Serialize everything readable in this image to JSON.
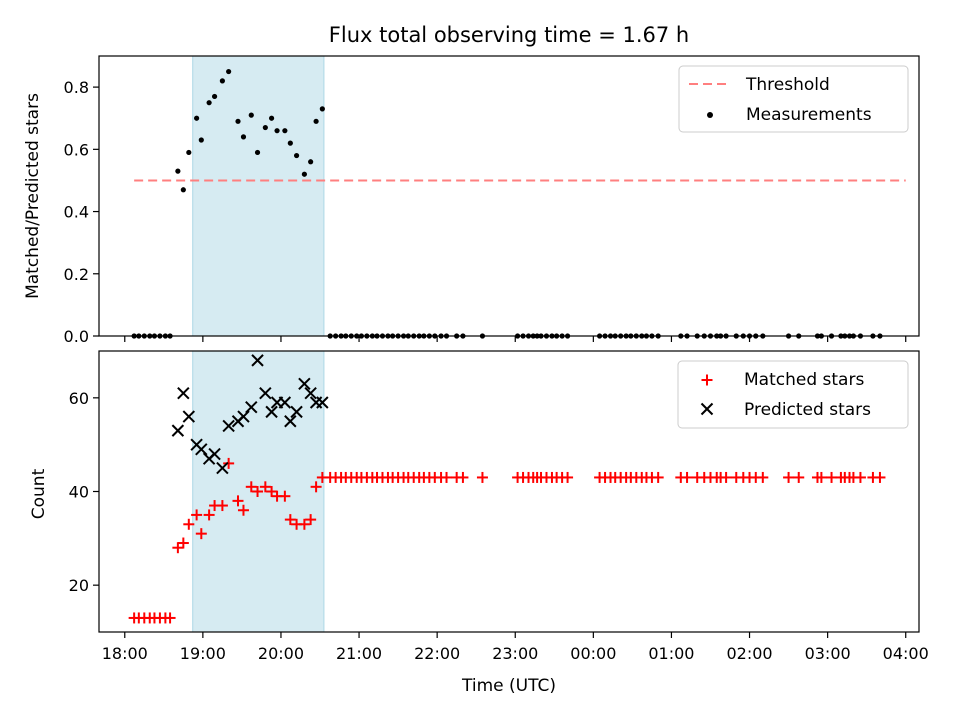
{
  "chart_data": {
    "type": "scatter",
    "title": "Flux total observing time = 1.67 h",
    "xlabel": "Time (UTC)",
    "x_tick_labels": [
      "18:00",
      "19:00",
      "20:00",
      "21:00",
      "22:00",
      "23:00",
      "00:00",
      "01:00",
      "02:00",
      "03:00",
      "04:00"
    ],
    "xlim_hours": [
      17.67,
      28.17
    ],
    "shaded_interval_hours": [
      18.87,
      20.55
    ],
    "shade_color": "#add8e6",
    "panels": [
      {
        "ylabel": "Matched/Predicted stars",
        "ylim": [
          0,
          0.9
        ],
        "yticks": [
          0.0,
          0.2,
          0.4,
          0.6,
          0.8
        ],
        "y_tick_labels": [
          "0.0",
          "0.2",
          "0.4",
          "0.6",
          "0.8"
        ],
        "legend_position": "top-right",
        "legend": [
          {
            "name": "Threshold",
            "style": "dashed-line",
            "color": "#ff7f7f"
          },
          {
            "name": "Measurements",
            "style": "dot",
            "color": "#000000"
          }
        ],
        "threshold": {
          "value": 0.5,
          "x_range": [
            18.12,
            28.0
          ],
          "color": "#ff7f7f"
        },
        "measurements": {
          "color": "#000000",
          "points": [
            [
              18.12,
              0
            ],
            [
              18.18,
              0
            ],
            [
              18.25,
              0
            ],
            [
              18.32,
              0
            ],
            [
              18.38,
              0
            ],
            [
              18.45,
              0
            ],
            [
              18.52,
              0
            ],
            [
              18.58,
              0
            ],
            [
              18.68,
              0.53
            ],
            [
              18.75,
              0.47
            ],
            [
              18.82,
              0.59
            ],
            [
              18.92,
              0.7
            ],
            [
              18.98,
              0.63
            ],
            [
              19.08,
              0.75
            ],
            [
              19.15,
              0.77
            ],
            [
              19.25,
              0.82
            ],
            [
              19.33,
              0.85
            ],
            [
              19.45,
              0.69
            ],
            [
              19.52,
              0.64
            ],
            [
              19.62,
              0.71
            ],
            [
              19.7,
              0.59
            ],
            [
              19.8,
              0.67
            ],
            [
              19.88,
              0.7
            ],
            [
              19.95,
              0.66
            ],
            [
              20.05,
              0.66
            ],
            [
              20.12,
              0.62
            ],
            [
              20.2,
              0.58
            ],
            [
              20.3,
              0.52
            ],
            [
              20.38,
              0.56
            ],
            [
              20.45,
              0.69
            ],
            [
              20.53,
              0.73
            ],
            [
              20.63,
              0
            ],
            [
              20.7,
              0
            ],
            [
              20.77,
              0
            ],
            [
              20.83,
              0
            ],
            [
              20.9,
              0
            ],
            [
              20.97,
              0
            ],
            [
              21.03,
              0
            ],
            [
              21.1,
              0
            ],
            [
              21.17,
              0
            ],
            [
              21.23,
              0
            ],
            [
              21.3,
              0
            ],
            [
              21.37,
              0
            ],
            [
              21.43,
              0
            ],
            [
              21.5,
              0
            ],
            [
              21.57,
              0
            ],
            [
              21.63,
              0
            ],
            [
              21.7,
              0
            ],
            [
              21.77,
              0
            ],
            [
              21.83,
              0
            ],
            [
              21.9,
              0
            ],
            [
              21.97,
              0
            ],
            [
              22.05,
              0
            ],
            [
              22.12,
              0
            ],
            [
              22.25,
              0
            ],
            [
              22.33,
              0
            ],
            [
              22.58,
              0
            ],
            [
              23.03,
              0
            ],
            [
              23.1,
              0
            ],
            [
              23.17,
              0
            ],
            [
              23.23,
              0
            ],
            [
              23.28,
              0
            ],
            [
              23.33,
              0
            ],
            [
              23.4,
              0
            ],
            [
              23.47,
              0
            ],
            [
              23.53,
              0
            ],
            [
              23.6,
              0
            ],
            [
              23.67,
              0
            ],
            [
              24.08,
              0
            ],
            [
              24.15,
              0
            ],
            [
              24.22,
              0
            ],
            [
              24.28,
              0
            ],
            [
              24.35,
              0
            ],
            [
              24.42,
              0
            ],
            [
              24.48,
              0
            ],
            [
              24.55,
              0
            ],
            [
              24.62,
              0
            ],
            [
              24.68,
              0
            ],
            [
              24.75,
              0
            ],
            [
              24.83,
              0
            ],
            [
              25.12,
              0
            ],
            [
              25.2,
              0
            ],
            [
              25.33,
              0
            ],
            [
              25.42,
              0
            ],
            [
              25.5,
              0
            ],
            [
              25.58,
              0
            ],
            [
              25.63,
              0
            ],
            [
              25.7,
              0
            ],
            [
              25.83,
              0
            ],
            [
              25.92,
              0
            ],
            [
              26.0,
              0
            ],
            [
              26.08,
              0
            ],
            [
              26.17,
              0
            ],
            [
              26.5,
              0
            ],
            [
              26.63,
              0
            ],
            [
              26.87,
              0
            ],
            [
              26.92,
              0
            ],
            [
              27.05,
              0
            ],
            [
              27.17,
              0
            ],
            [
              27.22,
              0
            ],
            [
              27.28,
              0
            ],
            [
              27.33,
              0
            ],
            [
              27.42,
              0
            ],
            [
              27.58,
              0
            ],
            [
              27.67,
              0
            ]
          ]
        }
      },
      {
        "ylabel": "Count",
        "ylim": [
          10,
          70
        ],
        "yticks": [
          20,
          40,
          60
        ],
        "y_tick_labels": [
          "20",
          "40",
          "60"
        ],
        "legend_position": "top-right",
        "legend": [
          {
            "name": "Matched stars",
            "style": "plus",
            "color": "#ff0000"
          },
          {
            "name": "Predicted stars",
            "style": "x",
            "color": "#000000"
          }
        ],
        "matched": {
          "color": "#ff0000",
          "points": [
            [
              18.12,
              13
            ],
            [
              18.18,
              13
            ],
            [
              18.25,
              13
            ],
            [
              18.32,
              13
            ],
            [
              18.38,
              13
            ],
            [
              18.45,
              13
            ],
            [
              18.52,
              13
            ],
            [
              18.58,
              13
            ],
            [
              18.68,
              28
            ],
            [
              18.75,
              29
            ],
            [
              18.82,
              33
            ],
            [
              18.92,
              35
            ],
            [
              18.98,
              31
            ],
            [
              19.08,
              35
            ],
            [
              19.15,
              37
            ],
            [
              19.25,
              37
            ],
            [
              19.33,
              46
            ],
            [
              19.45,
              38
            ],
            [
              19.52,
              36
            ],
            [
              19.62,
              41
            ],
            [
              19.7,
              40
            ],
            [
              19.8,
              41
            ],
            [
              19.88,
              40
            ],
            [
              19.95,
              39
            ],
            [
              20.05,
              39
            ],
            [
              20.12,
              34
            ],
            [
              20.2,
              33
            ],
            [
              20.3,
              33
            ],
            [
              20.38,
              34
            ],
            [
              20.45,
              41
            ],
            [
              20.53,
              43
            ],
            [
              20.63,
              43
            ],
            [
              20.7,
              43
            ],
            [
              20.77,
              43
            ],
            [
              20.83,
              43
            ],
            [
              20.9,
              43
            ],
            [
              20.97,
              43
            ],
            [
              21.03,
              43
            ],
            [
              21.1,
              43
            ],
            [
              21.17,
              43
            ],
            [
              21.23,
              43
            ],
            [
              21.3,
              43
            ],
            [
              21.37,
              43
            ],
            [
              21.43,
              43
            ],
            [
              21.5,
              43
            ],
            [
              21.57,
              43
            ],
            [
              21.63,
              43
            ],
            [
              21.7,
              43
            ],
            [
              21.77,
              43
            ],
            [
              21.83,
              43
            ],
            [
              21.9,
              43
            ],
            [
              21.97,
              43
            ],
            [
              22.05,
              43
            ],
            [
              22.12,
              43
            ],
            [
              22.25,
              43
            ],
            [
              22.33,
              43
            ],
            [
              22.58,
              43
            ],
            [
              23.03,
              43
            ],
            [
              23.1,
              43
            ],
            [
              23.17,
              43
            ],
            [
              23.23,
              43
            ],
            [
              23.28,
              43
            ],
            [
              23.33,
              43
            ],
            [
              23.4,
              43
            ],
            [
              23.47,
              43
            ],
            [
              23.53,
              43
            ],
            [
              23.6,
              43
            ],
            [
              23.67,
              43
            ],
            [
              24.08,
              43
            ],
            [
              24.15,
              43
            ],
            [
              24.22,
              43
            ],
            [
              24.28,
              43
            ],
            [
              24.35,
              43
            ],
            [
              24.42,
              43
            ],
            [
              24.48,
              43
            ],
            [
              24.55,
              43
            ],
            [
              24.62,
              43
            ],
            [
              24.68,
              43
            ],
            [
              24.75,
              43
            ],
            [
              24.83,
              43
            ],
            [
              25.12,
              43
            ],
            [
              25.2,
              43
            ],
            [
              25.33,
              43
            ],
            [
              25.42,
              43
            ],
            [
              25.5,
              43
            ],
            [
              25.58,
              43
            ],
            [
              25.63,
              43
            ],
            [
              25.7,
              43
            ],
            [
              25.83,
              43
            ],
            [
              25.92,
              43
            ],
            [
              26.0,
              43
            ],
            [
              26.08,
              43
            ],
            [
              26.17,
              43
            ],
            [
              26.5,
              43
            ],
            [
              26.63,
              43
            ],
            [
              26.87,
              43
            ],
            [
              26.92,
              43
            ],
            [
              27.05,
              43
            ],
            [
              27.17,
              43
            ],
            [
              27.22,
              43
            ],
            [
              27.28,
              43
            ],
            [
              27.33,
              43
            ],
            [
              27.42,
              43
            ],
            [
              27.58,
              43
            ],
            [
              27.67,
              43
            ]
          ]
        },
        "predicted": {
          "color": "#000000",
          "points": [
            [
              18.68,
              53
            ],
            [
              18.75,
              61
            ],
            [
              18.82,
              56
            ],
            [
              18.92,
              50
            ],
            [
              18.98,
              49
            ],
            [
              19.08,
              47
            ],
            [
              19.15,
              48
            ],
            [
              19.25,
              45
            ],
            [
              19.33,
              54
            ],
            [
              19.45,
              55
            ],
            [
              19.52,
              56
            ],
            [
              19.62,
              58
            ],
            [
              19.7,
              68
            ],
            [
              19.8,
              61
            ],
            [
              19.88,
              57
            ],
            [
              19.95,
              59
            ],
            [
              20.05,
              59
            ],
            [
              20.12,
              55
            ],
            [
              20.2,
              57
            ],
            [
              20.3,
              63
            ],
            [
              20.38,
              61
            ],
            [
              20.45,
              59
            ],
            [
              20.53,
              59
            ]
          ]
        }
      }
    ]
  }
}
